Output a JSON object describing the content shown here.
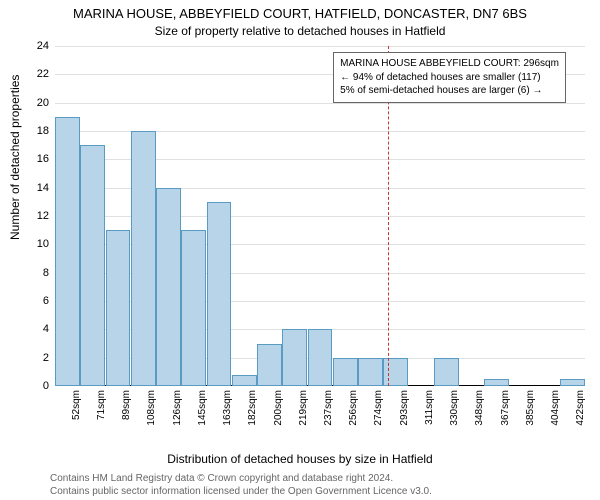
{
  "title_main": "MARINA HOUSE, ABBEYFIELD COURT, HATFIELD, DONCASTER, DN7 6BS",
  "title_sub": "Size of property relative to detached houses in Hatfield",
  "ylabel": "Number of detached properties",
  "xlabel": "Distribution of detached houses by size in Hatfield",
  "footer_line1": "Contains HM Land Registry data © Crown copyright and database right 2024.",
  "footer_line2": "Contains public sector information licensed under the Open Government Licence v3.0.",
  "chart": {
    "type": "histogram",
    "ylim": [
      0,
      24
    ],
    "ytick_step": 2,
    "background_color": "#ffffff",
    "grid_color": "#e0e0e0",
    "bar_fill": "#b8d4e8",
    "bar_border": "#5a9bc4",
    "ref_color": "#cc3333",
    "annot_border": "#666666",
    "categories": [
      "52sqm",
      "71sqm",
      "89sqm",
      "108sqm",
      "126sqm",
      "145sqm",
      "163sqm",
      "182sqm",
      "200sqm",
      "219sqm",
      "237sqm",
      "256sqm",
      "274sqm",
      "293sqm",
      "311sqm",
      "330sqm",
      "348sqm",
      "367sqm",
      "385sqm",
      "404sqm",
      "422sqm"
    ],
    "values": [
      19,
      17,
      11,
      18,
      14,
      11,
      13,
      0.8,
      3,
      4,
      4,
      2,
      2,
      2,
      0,
      2,
      0,
      0.5,
      0,
      0,
      0.5
    ],
    "ref_index": 13.2,
    "annot": {
      "line1": "MARINA HOUSE ABBEYFIELD COURT: 296sqm",
      "line2": "← 94% of detached houses are smaller (117)",
      "line3": "5% of semi-detached houses are larger (6) →"
    }
  }
}
